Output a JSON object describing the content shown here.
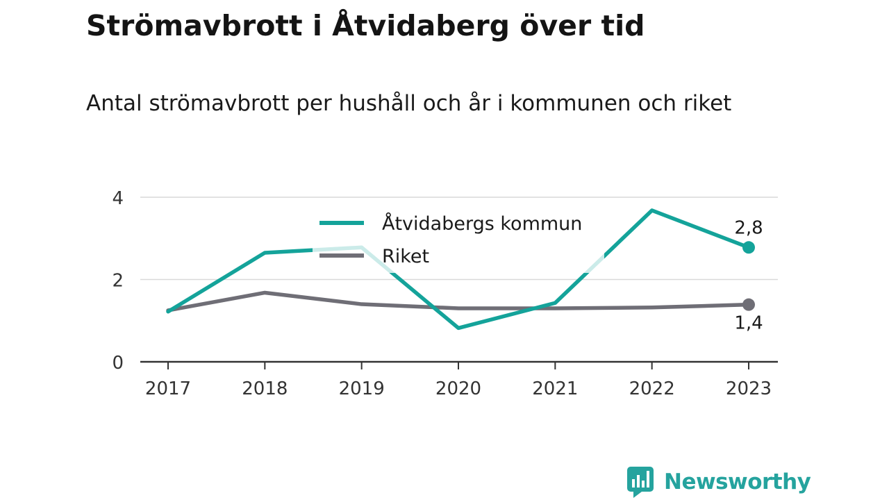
{
  "title": "Strömavbrott i Åtvidaberg över tid",
  "subtitle": "Antal strömavbrott per hushåll och år i kommunen och riket",
  "brand": {
    "name": "Newsworthy",
    "icon": "bar-chart-icon",
    "color": "#25a39e"
  },
  "chart_data": {
    "type": "line",
    "x": [
      "2017",
      "2018",
      "2019",
      "2020",
      "2021",
      "2022",
      "2023"
    ],
    "ylim": [
      0,
      4
    ],
    "yticks": [
      "0",
      "2",
      "4"
    ],
    "grid": true,
    "legend_position": "top-center",
    "series": [
      {
        "name": "Åtvidabergs kommun",
        "color": "#14a39a",
        "values": [
          1.22,
          2.65,
          2.78,
          0.82,
          1.43,
          3.68,
          2.78
        ],
        "end_label": "2,8"
      },
      {
        "name": "Riket",
        "color": "#6f6e76",
        "values": [
          1.25,
          1.68,
          1.4,
          1.3,
          1.3,
          1.32,
          1.39
        ],
        "end_label": "1,4"
      }
    ]
  }
}
